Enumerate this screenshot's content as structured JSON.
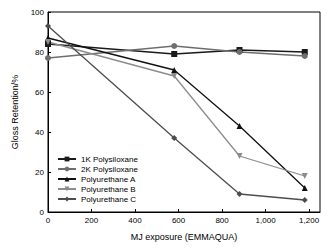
{
  "chart_data": {
    "type": "line",
    "x_label": "MJ exposure (EMMAQUA)",
    "y_label": "Gloss Retention/%",
    "x": [
      0,
      580,
      880,
      1180
    ],
    "xlim": [
      0,
      1250
    ],
    "xticks": [
      0,
      200,
      400,
      600,
      800,
      1000,
      1200
    ],
    "ylim": [
      0,
      100
    ],
    "yticks": [
      0,
      20,
      40,
      60,
      80,
      100
    ],
    "grid": false,
    "legend": "lower left",
    "series": [
      {
        "name": "1K Polysiloxane",
        "color": "#1a1a1a",
        "marker": "square",
        "values": [
          84,
          79,
          81,
          80
        ]
      },
      {
        "name": "2K Polysiloxane",
        "color": "#6e6e6e",
        "marker": "circle",
        "values": [
          77,
          83,
          80,
          78
        ]
      },
      {
        "name": "Polyurethane A",
        "color": "#111111",
        "marker": "triangle",
        "values": [
          87,
          71,
          43,
          12
        ]
      },
      {
        "name": "Polyurethane B",
        "color": "#8c8c8c",
        "marker": "triangle-down",
        "values": [
          85,
          68,
          28,
          18
        ]
      },
      {
        "name": "Polyurethane C",
        "color": "#4d4d4d",
        "marker": "diamond",
        "values": [
          93,
          37,
          9,
          6
        ]
      }
    ]
  }
}
